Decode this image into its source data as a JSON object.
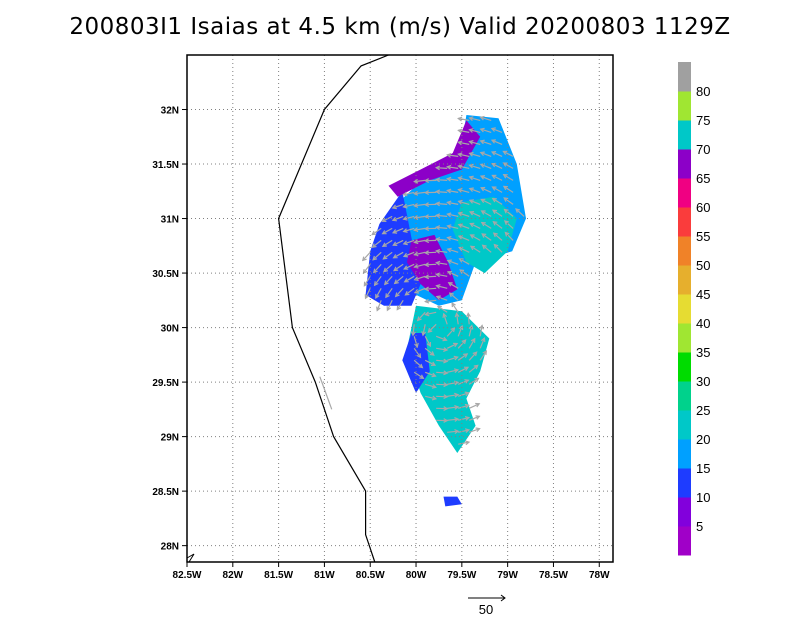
{
  "chart_data": {
    "type": "heatmap",
    "title": "200803I1 Isaias at 4.5 km (m/s) Valid 20200803 1129Z",
    "x_ticks": [
      "82.5W",
      "82W",
      "81.5W",
      "81W",
      "80.5W",
      "80W",
      "79.5W",
      "79W",
      "78.5W",
      "78W"
    ],
    "x_values": [
      -82.5,
      -82,
      -81.5,
      -81,
      -80.5,
      -80,
      -79.5,
      -79,
      -78.5,
      -78
    ],
    "y_ticks": [
      "28N",
      "28.5N",
      "29N",
      "29.5N",
      "30N",
      "30.5N",
      "31N",
      "31.5N",
      "32N"
    ],
    "y_values": [
      28,
      28.5,
      29,
      29.5,
      30,
      30.5,
      31,
      31.5,
      32
    ],
    "xlim": [
      -82.5,
      -77.85
    ],
    "ylim": [
      27.85,
      32.5
    ],
    "grid": true,
    "colorbar": {
      "labels": [
        "5",
        "10",
        "15",
        "20",
        "25",
        "30",
        "35",
        "40",
        "45",
        "50",
        "55",
        "60",
        "65",
        "70",
        "75",
        "80"
      ],
      "colors": [
        "#a000c8",
        "#8200dc",
        "#1e3cff",
        "#00a0ff",
        "#00c8c8",
        "#00d28c",
        "#00dc00",
        "#a0e632",
        "#e6dc32",
        "#e6af2d",
        "#f08228",
        "#fa3c3c",
        "#f00082",
        "#8c00c8",
        "#00c8c8",
        "#a0e632",
        "#a0a0a0"
      ]
    },
    "reference_vector": {
      "label": "50"
    },
    "coastline": [
      [
        -80.3,
        32.5
      ],
      [
        -80.6,
        32.4
      ],
      [
        -81.0,
        32.0
      ],
      [
        -81.5,
        31.0
      ],
      [
        -81.35,
        30.0
      ],
      [
        -81.1,
        29.5
      ],
      [
        -80.9,
        29.0
      ],
      [
        -80.55,
        28.5
      ],
      [
        -80.55,
        28.1
      ],
      [
        -80.45,
        27.85
      ]
    ],
    "regions": [
      {
        "name": "upper-main",
        "value": 18,
        "poly": [
          [
            -80.25,
            31.1
          ],
          [
            -80.0,
            31.3
          ],
          [
            -79.7,
            31.45
          ],
          [
            -79.5,
            31.7
          ],
          [
            -79.45,
            31.95
          ],
          [
            -79.1,
            31.92
          ],
          [
            -78.9,
            31.5
          ],
          [
            -78.8,
            31.0
          ],
          [
            -78.95,
            30.7
          ],
          [
            -79.35,
            30.6
          ],
          [
            -79.5,
            30.25
          ],
          [
            -79.75,
            30.2
          ],
          [
            -80.0,
            30.3
          ],
          [
            -80.2,
            30.45
          ],
          [
            -80.35,
            30.6
          ],
          [
            -80.4,
            30.9
          ]
        ]
      },
      {
        "name": "west-arm",
        "value": 10,
        "poly": [
          [
            -80.4,
            30.95
          ],
          [
            -80.15,
            31.25
          ],
          [
            -79.95,
            30.4
          ],
          [
            -80.05,
            30.2
          ],
          [
            -80.35,
            30.2
          ],
          [
            -80.55,
            30.3
          ],
          [
            -80.5,
            30.7
          ]
        ]
      },
      {
        "name": "north-band",
        "value": 66,
        "poly": [
          [
            -80.3,
            31.3
          ],
          [
            -79.95,
            31.45
          ],
          [
            -79.6,
            31.6
          ],
          [
            -79.45,
            31.9
          ],
          [
            -79.3,
            31.75
          ],
          [
            -79.5,
            31.45
          ],
          [
            -79.85,
            31.35
          ],
          [
            -80.2,
            31.2
          ]
        ]
      },
      {
        "name": "west-band",
        "value": 66,
        "poly": [
          [
            -80.05,
            30.8
          ],
          [
            -79.8,
            30.85
          ],
          [
            -79.65,
            30.6
          ],
          [
            -79.55,
            30.35
          ],
          [
            -79.75,
            30.25
          ],
          [
            -79.95,
            30.4
          ],
          [
            -80.1,
            30.6
          ]
        ]
      },
      {
        "name": "east-core",
        "value": 24,
        "poly": [
          [
            -79.5,
            31.15
          ],
          [
            -79.15,
            31.2
          ],
          [
            -78.9,
            31.0
          ],
          [
            -79.0,
            30.7
          ],
          [
            -79.25,
            30.5
          ],
          [
            -79.45,
            30.6
          ],
          [
            -79.6,
            30.9
          ]
        ]
      },
      {
        "name": "lower-band",
        "value": 20,
        "poly": [
          [
            -80.0,
            30.2
          ],
          [
            -79.5,
            30.15
          ],
          [
            -79.2,
            29.9
          ],
          [
            -79.3,
            29.6
          ],
          [
            -79.45,
            29.35
          ],
          [
            -79.35,
            29.1
          ],
          [
            -79.55,
            28.85
          ],
          [
            -79.75,
            29.1
          ],
          [
            -79.95,
            29.4
          ],
          [
            -80.1,
            29.8
          ]
        ]
      },
      {
        "name": "lower-blue",
        "value": 12,
        "poly": [
          [
            -80.05,
            29.95
          ],
          [
            -79.9,
            29.95
          ],
          [
            -79.85,
            29.6
          ],
          [
            -80.0,
            29.4
          ],
          [
            -80.15,
            29.7
          ]
        ]
      },
      {
        "name": "south-blob",
        "value": 12,
        "poly": [
          [
            -79.7,
            28.45
          ],
          [
            -79.55,
            28.45
          ],
          [
            -79.5,
            28.38
          ],
          [
            -79.68,
            28.36
          ]
        ]
      }
    ],
    "wind_vector_field": "gray arrows across echo region"
  }
}
